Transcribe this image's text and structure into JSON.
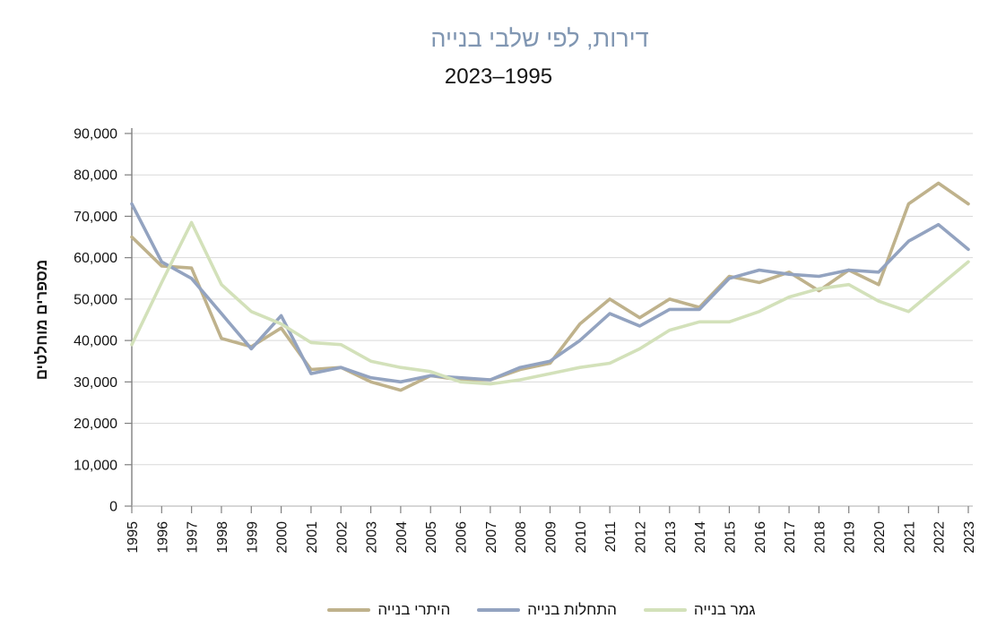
{
  "header": {
    "title": "דירות, לפי שלבי בנייה",
    "subtitle": "2023–1995"
  },
  "chart_data": {
    "type": "line",
    "title": "דירות, לפי שלבי בנייה",
    "subtitle": "2023–1995",
    "ylabel": "מספרים מוחלטים",
    "xlabel": "",
    "ylim": [
      0,
      90000
    ],
    "ytick_step": 10000,
    "yticks": [
      "0",
      "10,000",
      "20,000",
      "30,000",
      "40,000",
      "50,000",
      "60,000",
      "70,000",
      "80,000",
      "90,000"
    ],
    "grid": "horizontal",
    "legend_position": "bottom",
    "x": [
      1995,
      1996,
      1997,
      1998,
      1999,
      2000,
      2001,
      2002,
      2003,
      2004,
      2005,
      2006,
      2007,
      2008,
      2009,
      2010,
      2011,
      2012,
      2013,
      2014,
      2015,
      2016,
      2017,
      2018,
      2019,
      2020,
      2021,
      2022,
      2023
    ],
    "series": [
      {
        "id": "building-permits",
        "name": "היתרי בנייה",
        "color": "#bfb28c",
        "values": [
          65000,
          58000,
          57500,
          40500,
          38500,
          43000,
          33000,
          33500,
          30000,
          28000,
          31500,
          30500,
          30500,
          33000,
          34500,
          44000,
          50000,
          45500,
          50000,
          48000,
          55500,
          54000,
          56500,
          52000,
          57000,
          53500,
          73000,
          78000,
          73000
        ]
      },
      {
        "id": "building-starts",
        "name": "התחלות בנייה",
        "color": "#93a3c0",
        "values": [
          73000,
          59000,
          55000,
          46500,
          38000,
          46000,
          32000,
          33500,
          31000,
          30000,
          31500,
          31000,
          30500,
          33500,
          35000,
          40000,
          46500,
          43500,
          47500,
          47500,
          55000,
          57000,
          56000,
          55500,
          57000,
          56500,
          64000,
          68000,
          62000
        ]
      },
      {
        "id": "building-completions",
        "name": "גמר בנייה",
        "color": "#d3e1ba",
        "values": [
          39000,
          54000,
          68500,
          53500,
          47000,
          44000,
          39500,
          39000,
          35000,
          33500,
          32500,
          30000,
          29500,
          30500,
          32000,
          33500,
          34500,
          38000,
          42500,
          44500,
          44500,
          47000,
          50500,
          52500,
          53500,
          49500,
          47000,
          53000,
          59000
        ]
      }
    ]
  },
  "colors": {
    "title": "#8096b2",
    "grid": "#d9d9d9",
    "y_axis": "#808080",
    "x_axis": "#bfbfbf",
    "tick": "#808080",
    "text": "#141414"
  }
}
